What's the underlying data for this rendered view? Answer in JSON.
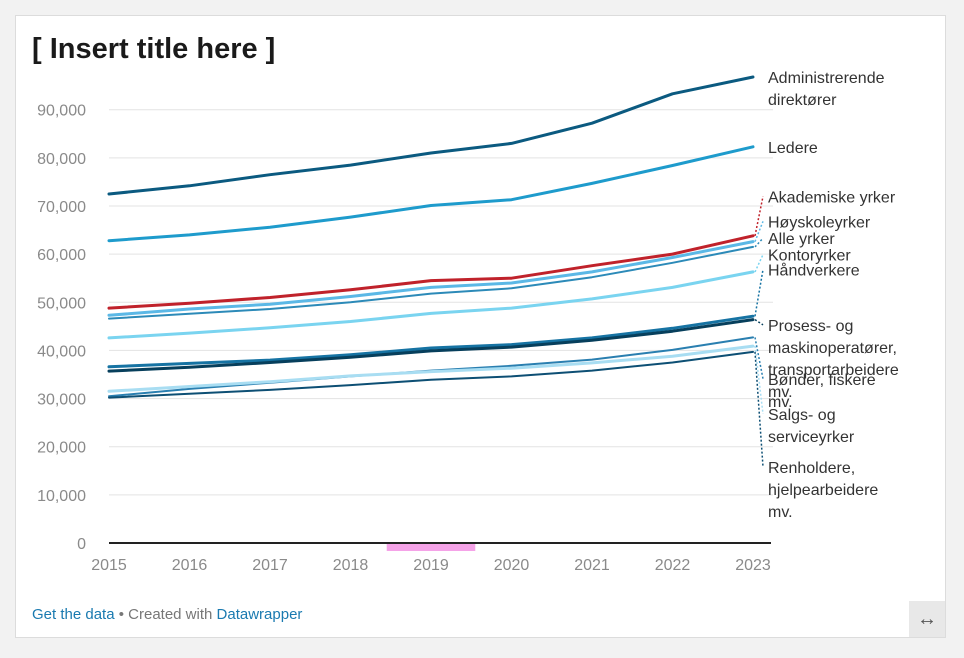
{
  "title": "[ Insert title here ]",
  "footer": {
    "get_data": "Get the data",
    "separator": " • Created with ",
    "created_with": "Datawrapper"
  },
  "expand_icon": "↔",
  "highlight_color": "#f5a3e8",
  "chart_data": {
    "type": "line",
    "x": [
      2015,
      2016,
      2017,
      2018,
      2019,
      2020,
      2021,
      2022,
      2023
    ],
    "x_tick_labels": [
      "2015",
      "2016",
      "2017",
      "2018",
      "2019",
      "2020",
      "2021",
      "2022",
      "2023"
    ],
    "y_ticks": [
      0,
      10000,
      20000,
      30000,
      40000,
      50000,
      60000,
      70000,
      80000,
      90000
    ],
    "y_tick_labels": [
      "0",
      "10,000",
      "20,000",
      "30,000",
      "40,000",
      "50,000",
      "60,000",
      "70,000",
      "80,000",
      "90,000"
    ],
    "ylim": [
      0,
      97000
    ],
    "grid": true,
    "highlight_x_range": [
      2018.45,
      2019.55
    ],
    "series": [
      {
        "name": "Administrerende direktører",
        "label_lines": [
          "Administrerende",
          "direktører"
        ],
        "color": "#0b5a80",
        "width": 3,
        "values": [
          72500,
          74200,
          76500,
          78500,
          81000,
          83000,
          87200,
          93300,
          96800
        ],
        "label_value": 96800
      },
      {
        "name": "Ledere",
        "label_lines": [
          "Ledere"
        ],
        "color": "#1e9bcc",
        "width": 3,
        "values": [
          62800,
          64000,
          65600,
          67700,
          70100,
          71300,
          74700,
          78400,
          82300
        ],
        "label_value": 82300
      },
      {
        "name": "Akademiske yrker",
        "label_lines": [
          "Akademiske yrker"
        ],
        "color": "#c0222b",
        "width": 3,
        "values": [
          48800,
          49800,
          51000,
          52600,
          54500,
          55000,
          57600,
          60000,
          63800
        ],
        "label_value": 72000
      },
      {
        "name": "Høyskoleyrker",
        "label_lines": [
          "Høyskoleyrker"
        ],
        "color": "#5bb8e6",
        "width": 3,
        "values": [
          47300,
          48600,
          49600,
          51200,
          53100,
          54000,
          56300,
          59300,
          62600
        ],
        "label_value": 66800
      },
      {
        "name": "Alle yrker",
        "label_lines": [
          "Alle yrker"
        ],
        "color": "#2c8ab8",
        "width": 2,
        "values": [
          46600,
          47600,
          48600,
          50000,
          51800,
          52900,
          55200,
          58200,
          61500
        ],
        "label_value": 63300
      },
      {
        "name": "Kontoryrker",
        "label_lines": [
          "Kontoryrker"
        ],
        "color": "#7ad4f0",
        "width": 3,
        "values": [
          42600,
          43600,
          44700,
          46000,
          47700,
          48800,
          50700,
          53100,
          56300
        ],
        "label_value": 59900
      },
      {
        "name": "Håndverkere",
        "label_lines": [
          "Håndverkere"
        ],
        "color": "#1673a3",
        "width": 3,
        "values": [
          36600,
          37300,
          38000,
          39100,
          40500,
          41200,
          42600,
          44600,
          47100
        ],
        "label_value": 56800
      },
      {
        "name": "Prosess- og maskinoperatører, transportarbeidere mv.",
        "label_lines": [
          "Prosess- og",
          "maskinoperatører,",
          "transportarbeidere",
          "mv."
        ],
        "color": "#073f5c",
        "width": 3,
        "values": [
          35700,
          36500,
          37500,
          38600,
          39900,
          40700,
          42100,
          44000,
          46400
        ],
        "label_value": 45300
      },
      {
        "name": "Bønder, fiskere mv.",
        "label_lines": [
          "Bønder, fiskere",
          "mv."
        ],
        "color": "#2a7fb0",
        "width": 2,
        "values": [
          30500,
          32000,
          33300,
          34600,
          35800,
          36800,
          38100,
          40100,
          42700
        ],
        "label_value": 34100
      },
      {
        "name": "Salgs- og serviceyrker",
        "label_lines": [
          "Salgs- og",
          "serviceyrker"
        ],
        "color": "#a8ddf2",
        "width": 3,
        "values": [
          31500,
          32500,
          33500,
          34700,
          35600,
          36300,
          37400,
          38800,
          40900
        ],
        "label_value": 26800
      },
      {
        "name": "Renholdere, hjelpearbeidere mv.",
        "label_lines": [
          "Renholdere,",
          "hjelpearbeidere",
          "mv."
        ],
        "color": "#0d4f74",
        "width": 2,
        "values": [
          30200,
          31000,
          31800,
          32800,
          33900,
          34600,
          35800,
          37500,
          39700
        ],
        "label_value": 15800
      }
    ]
  }
}
